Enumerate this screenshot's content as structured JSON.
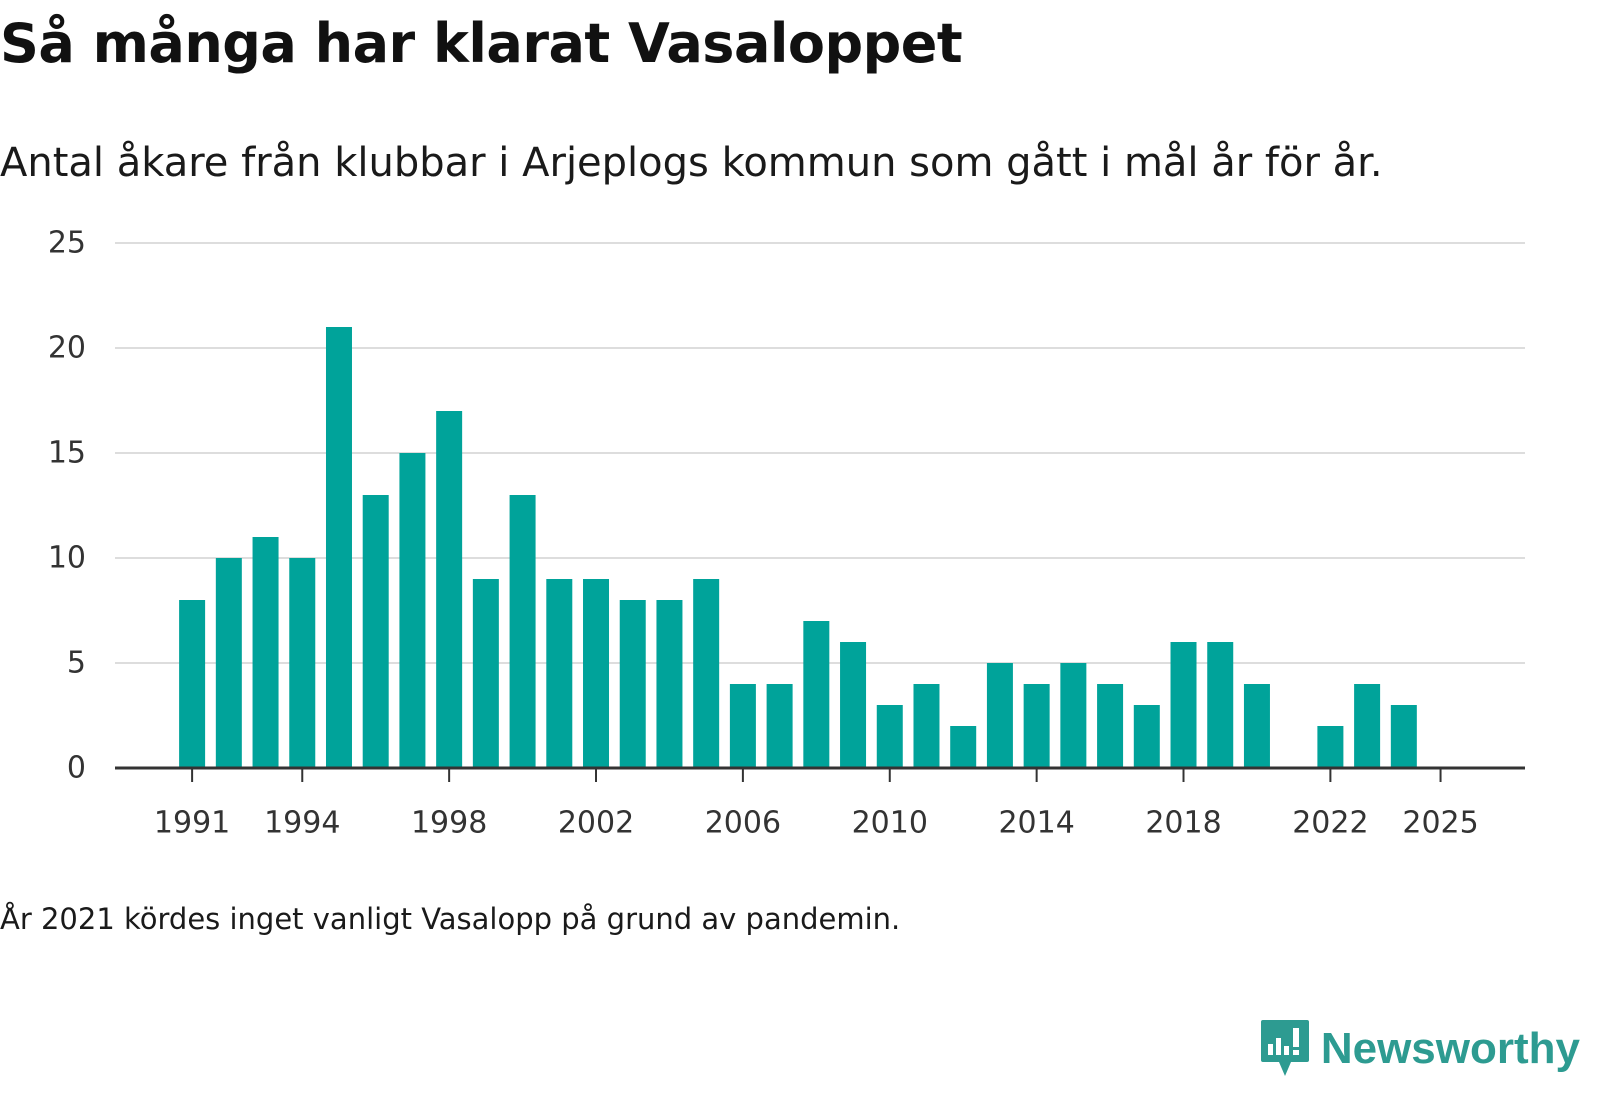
{
  "colors": {
    "bar": "#00A39A",
    "grid": "#dddddd",
    "axis": "#333333",
    "brand": "#2d9b91"
  },
  "chart_data": {
    "type": "bar",
    "title": "Så många har klarat Vasaloppet",
    "subtitle": "Antal åkare från klubbar i Arjeplogs kommun som gått i mål år för år.",
    "note": "År 2021 kördes inget vanligt Vasalopp på grund av pandemin.",
    "xlabel": "",
    "ylabel": "",
    "xlim": [
      1988.9,
      2027.3
    ],
    "ylim": [
      0,
      25
    ],
    "yticks": [
      0,
      5,
      10,
      15,
      20,
      25
    ],
    "xticks": [
      1991,
      1994,
      1998,
      2002,
      2006,
      2010,
      2014,
      2018,
      2022,
      2025
    ],
    "grid": true,
    "series": [
      {
        "name": "Antal åkare",
        "points": [
          {
            "x": 1991,
            "y": 8
          },
          {
            "x": 1992,
            "y": 10
          },
          {
            "x": 1993,
            "y": 11
          },
          {
            "x": 1994,
            "y": 10
          },
          {
            "x": 1995,
            "y": 21
          },
          {
            "x": 1996,
            "y": 13
          },
          {
            "x": 1997,
            "y": 15
          },
          {
            "x": 1998,
            "y": 17
          },
          {
            "x": 1999,
            "y": 9
          },
          {
            "x": 2000,
            "y": 13
          },
          {
            "x": 2001,
            "y": 9
          },
          {
            "x": 2002,
            "y": 9
          },
          {
            "x": 2003,
            "y": 8
          },
          {
            "x": 2004,
            "y": 8
          },
          {
            "x": 2005,
            "y": 9
          },
          {
            "x": 2006,
            "y": 4
          },
          {
            "x": 2007,
            "y": 4
          },
          {
            "x": 2008,
            "y": 7
          },
          {
            "x": 2009,
            "y": 6
          },
          {
            "x": 2010,
            "y": 3
          },
          {
            "x": 2011,
            "y": 4
          },
          {
            "x": 2012,
            "y": 2
          },
          {
            "x": 2013,
            "y": 5
          },
          {
            "x": 2014,
            "y": 4
          },
          {
            "x": 2015,
            "y": 5
          },
          {
            "x": 2016,
            "y": 4
          },
          {
            "x": 2017,
            "y": 3
          },
          {
            "x": 2018,
            "y": 6
          },
          {
            "x": 2019,
            "y": 6
          },
          {
            "x": 2020,
            "y": 4
          },
          {
            "x": 2022,
            "y": 2
          },
          {
            "x": 2023,
            "y": 4
          },
          {
            "x": 2024,
            "y": 3
          }
        ]
      }
    ]
  },
  "brand": {
    "name": "Newsworthy",
    "icon": "newsworthy-logo-icon"
  }
}
